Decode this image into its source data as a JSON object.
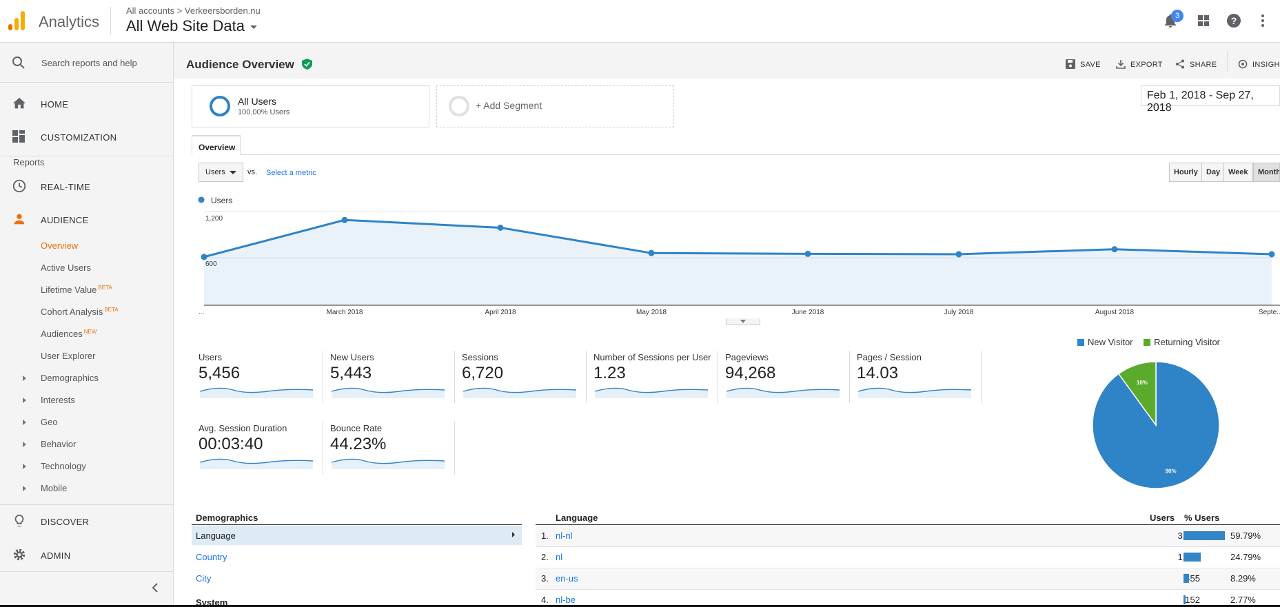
{
  "app": {
    "title": "Analytics",
    "breadcrumb": "All accounts > Verkeersborden.nu",
    "property": "All Web Site Data",
    "notif_count": "3"
  },
  "sidebar": {
    "search_placeholder": "Search reports and help",
    "home": "HOME",
    "customization": "CUSTOMIZATION",
    "reports_label": "Reports",
    "realtime": "REAL-TIME",
    "audience": "AUDIENCE",
    "sub_items": [
      {
        "label": "Overview",
        "badge": ""
      },
      {
        "label": "Active Users",
        "badge": ""
      },
      {
        "label": "Lifetime Value",
        "badge": "BETA"
      },
      {
        "label": "Cohort Analysis",
        "badge": "BETA"
      },
      {
        "label": "Audiences",
        "badge": "NEW"
      },
      {
        "label": "User Explorer",
        "badge": ""
      }
    ],
    "expand_items": [
      "Demographics",
      "Interests",
      "Geo",
      "Behavior",
      "Technology",
      "Mobile"
    ],
    "discover": "DISCOVER",
    "admin": "ADMIN"
  },
  "header": {
    "page_title": "Audience Overview",
    "save": "SAVE",
    "export": "EXPORT",
    "share": "SHARE",
    "insights": "INSIGHTS"
  },
  "segments": {
    "all_users_title": "All Users",
    "all_users_sub": "100.00% Users",
    "add_segment": "+ Add Segment"
  },
  "date_range": "Feb 1, 2018 - Sep 27, 2018",
  "tab_overview": "Overview",
  "metric_select": {
    "value": "Users",
    "vs": "vs.",
    "select_metric": "Select a metric"
  },
  "granularity": [
    "Hourly",
    "Day",
    "Week",
    "Month"
  ],
  "chart_data": {
    "type": "line",
    "series": [
      {
        "name": "Users",
        "values": [
          610,
          1090,
          990,
          660,
          650,
          645,
          710,
          645
        ]
      }
    ],
    "x": [
      "...",
      "March 2018",
      "April 2018",
      "May 2018",
      "June 2018",
      "July 2018",
      "August 2018",
      "Septe..."
    ],
    "ytick_labels": [
      "1,200",
      "600"
    ],
    "ylim": [
      0,
      1300
    ],
    "color": "#2f83c7"
  },
  "kpis": [
    {
      "label": "Users",
      "value": "5,456"
    },
    {
      "label": "New Users",
      "value": "5,443"
    },
    {
      "label": "Sessions",
      "value": "6,720"
    },
    {
      "label": "Number of Sessions per User",
      "value": "1.23"
    },
    {
      "label": "Pageviews",
      "value": "94,268"
    },
    {
      "label": "Pages / Session",
      "value": "14.03"
    },
    {
      "label": "Avg. Session Duration",
      "value": "00:03:40"
    },
    {
      "label": "Bounce Rate",
      "value": "44.23%"
    }
  ],
  "pie": {
    "legend": [
      {
        "label": "New Visitor",
        "color": "#2f83c7"
      },
      {
        "label": "Returning Visitor",
        "color": "#5aab2c"
      }
    ],
    "slices": [
      {
        "label": "90%",
        "value": 90
      },
      {
        "label": "10%",
        "value": 10
      }
    ]
  },
  "demographics": {
    "title": "Demographics",
    "items": [
      "Language",
      "Country",
      "City"
    ],
    "system": "System"
  },
  "language_table": {
    "col_language": "Language",
    "col_users": "Users",
    "col_pct": "% Users",
    "rows": [
      {
        "rank": "1.",
        "lang": "nl-nl",
        "users": "3,283",
        "pct": "59.79%",
        "share": 59.79
      },
      {
        "rank": "2.",
        "lang": "nl",
        "users": "1,361",
        "pct": "24.79%",
        "share": 24.79
      },
      {
        "rank": "3.",
        "lang": "en-us",
        "users": "455",
        "pct": "8.29%",
        "share": 8.29
      },
      {
        "rank": "4.",
        "lang": "nl-be",
        "users": "152",
        "pct": "2.77%",
        "share": 2.77
      }
    ]
  }
}
